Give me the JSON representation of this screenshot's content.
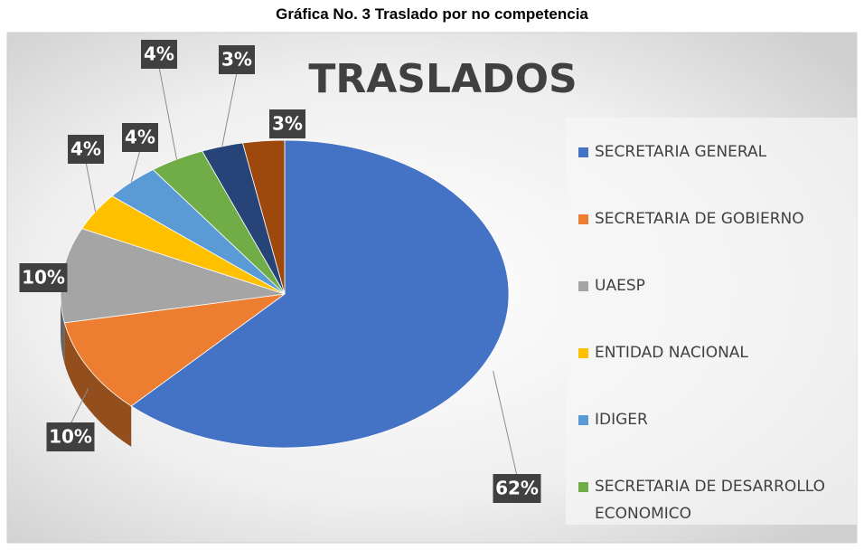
{
  "chart_data": {
    "type": "pie",
    "title": "Gráfica No. 3 Traslado por no competencia",
    "subtitle": "TRASLADOS",
    "categories": [
      "SECRETARIA GENERAL",
      "SECRETARIA DE GOBIERNO",
      "UAESP",
      "ENTIDAD NACIONAL",
      "IDIGER",
      "SECRETARIA DE DESARROLLO ECONOMICO",
      null,
      null
    ],
    "values": [
      62,
      10,
      10,
      4,
      4,
      4,
      3,
      3
    ],
    "value_labels": [
      "62%",
      "10%",
      "10%",
      "4%",
      "4%",
      "4%",
      "3%",
      "3%"
    ],
    "colors": [
      "#4472c4",
      "#ed7d31",
      "#a5a5a5",
      "#ffc000",
      "#5b9bd5",
      "#70ad47",
      "#264478",
      "#9e480e"
    ],
    "legend": "right"
  }
}
